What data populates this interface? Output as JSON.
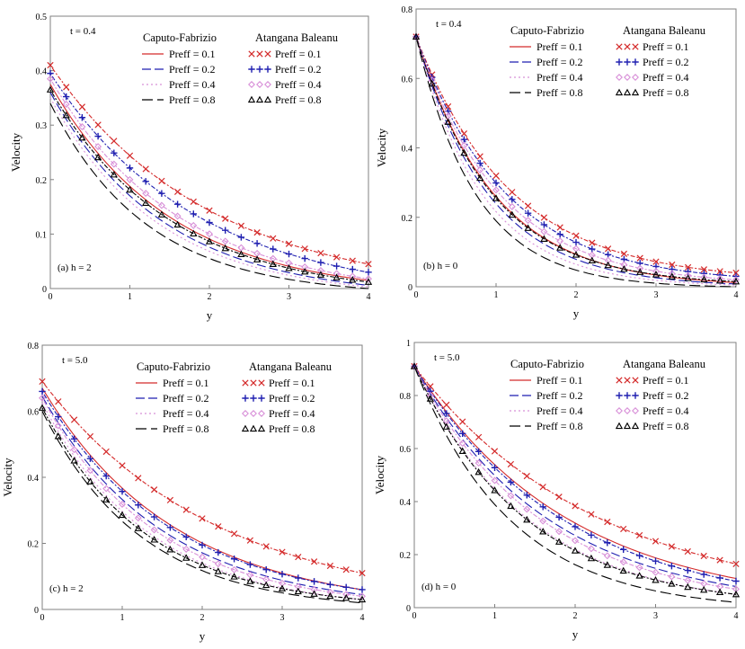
{
  "colors": {
    "red": "#d42a2a",
    "blue": "#1f1fb0",
    "pink": "#d890d8",
    "black": "#000000",
    "frame": "#808080"
  },
  "chart_data": [
    {
      "type": "line",
      "panel_label": "(a)  h = 2",
      "time_label": "t = 0.4",
      "xlabel": "y",
      "ylabel": "Velocity",
      "xlim": [
        0,
        4
      ],
      "ylim": [
        0,
        0.5
      ],
      "x_ticks": [
        "0",
        "1",
        "2",
        "3",
        "4"
      ],
      "y_ticks": [
        "0",
        "0.1",
        "0.2",
        "0.3",
        "0.4",
        "0.5"
      ],
      "legend_headers": [
        "Caputo-Fabrizio",
        "Atangana Baleanu"
      ],
      "series": [
        {
          "name": "Preff = 0.1",
          "model": "Caputo-Fabrizio",
          "u0": 0.375,
          "decay": 0.66,
          "end": 0.015
        },
        {
          "name": "Preff = 0.2",
          "model": "Caputo-Fabrizio",
          "u0": 0.36,
          "decay": 0.7,
          "end": 0.006
        },
        {
          "name": "Preff = 0.4",
          "model": "Caputo-Fabrizio",
          "u0": 0.35,
          "decay": 0.73,
          "end": 0.003
        },
        {
          "name": "Preff = 0.8",
          "model": "Caputo-Fabrizio",
          "u0": 0.34,
          "decay": 0.82,
          "end": 0.0
        },
        {
          "name": "Preff = 0.1",
          "model": "Atangana Baleanu",
          "u0": 0.41,
          "decay": 0.5,
          "end": 0.045
        },
        {
          "name": "Preff = 0.2",
          "model": "Atangana Baleanu",
          "u0": 0.395,
          "decay": 0.55,
          "end": 0.03
        },
        {
          "name": "Preff = 0.4",
          "model": "Atangana Baleanu",
          "u0": 0.385,
          "decay": 0.62,
          "end": 0.018
        },
        {
          "name": "Preff = 0.8",
          "model": "Atangana Baleanu",
          "u0": 0.365,
          "decay": 0.66,
          "end": 0.012
        }
      ]
    },
    {
      "type": "line",
      "panel_label": "(b)  h = 0",
      "time_label": "t = 0.4",
      "xlabel": "y",
      "ylabel": "Velocity",
      "xlim": [
        0,
        4
      ],
      "ylim": [
        0,
        0.8
      ],
      "x_ticks": [
        "0",
        "1",
        "2",
        "3",
        "4"
      ],
      "y_ticks": [
        "0",
        "0.2",
        "0.4",
        "0.6",
        "0.8"
      ],
      "legend_headers": [
        "Caputo-Fabrizio",
        "Atangana Baleanu"
      ],
      "series": [
        {
          "name": "Preff = 0.1",
          "model": "Caputo-Fabrizio",
          "u0": 0.72,
          "decay": 1.02,
          "end": 0.012
        },
        {
          "name": "Preff = 0.2",
          "model": "Caputo-Fabrizio",
          "u0": 0.72,
          "decay": 1.1,
          "end": 0.008
        },
        {
          "name": "Preff = 0.4",
          "model": "Caputo-Fabrizio",
          "u0": 0.72,
          "decay": 1.2,
          "end": 0.005
        },
        {
          "name": "Preff = 0.8",
          "model": "Caputo-Fabrizio",
          "u0": 0.72,
          "decay": 1.32,
          "end": 0.0
        },
        {
          "name": "Preff = 0.1",
          "model": "Atangana Baleanu",
          "u0": 0.72,
          "decay": 0.84,
          "end": 0.04
        },
        {
          "name": "Preff = 0.2",
          "model": "Atangana Baleanu",
          "u0": 0.72,
          "decay": 0.9,
          "end": 0.03
        },
        {
          "name": "Preff = 0.4",
          "model": "Atangana Baleanu",
          "u0": 0.72,
          "decay": 0.96,
          "end": 0.02
        },
        {
          "name": "Preff = 0.8",
          "model": "Atangana Baleanu",
          "u0": 0.72,
          "decay": 1.05,
          "end": 0.015
        }
      ]
    },
    {
      "type": "line",
      "panel_label": "(c)  h = 2",
      "time_label": "t = 5.0",
      "xlabel": "y",
      "ylabel": "Velocity",
      "xlim": [
        0,
        4
      ],
      "ylim": [
        0,
        0.8
      ],
      "x_ticks": [
        "0",
        "1",
        "2",
        "3",
        "4"
      ],
      "y_ticks": [
        "0",
        "0.2",
        "0.4",
        "0.6",
        "0.8"
      ],
      "legend_headers": [
        "Caputo-Fabrizio",
        "Atangana Baleanu"
      ],
      "series": [
        {
          "name": "Preff = 0.1",
          "model": "Caputo-Fabrizio",
          "u0": 0.67,
          "decay": 0.6,
          "end": 0.06
        },
        {
          "name": "Preff = 0.2",
          "model": "Caputo-Fabrizio",
          "u0": 0.645,
          "decay": 0.66,
          "end": 0.045
        },
        {
          "name": "Preff = 0.4",
          "model": "Caputo-Fabrizio",
          "u0": 0.625,
          "decay": 0.74,
          "end": 0.03
        },
        {
          "name": "Preff = 0.8",
          "model": "Caputo-Fabrizio",
          "u0": 0.6,
          "decay": 0.8,
          "end": 0.02
        },
        {
          "name": "Preff = 0.1",
          "model": "Atangana Baleanu",
          "u0": 0.69,
          "decay": 0.46,
          "end": 0.11
        },
        {
          "name": "Preff = 0.2",
          "model": "Atangana Baleanu",
          "u0": 0.66,
          "decay": 0.62,
          "end": 0.06
        },
        {
          "name": "Preff = 0.4",
          "model": "Atangana Baleanu",
          "u0": 0.64,
          "decay": 0.7,
          "end": 0.04
        },
        {
          "name": "Preff = 0.8",
          "model": "Atangana Baleanu",
          "u0": 0.61,
          "decay": 0.76,
          "end": 0.03
        }
      ]
    },
    {
      "type": "line",
      "panel_label": "(d)  h = 0",
      "time_label": "t = 5.0",
      "xlabel": "y",
      "ylabel": "Velocity",
      "xlim": [
        0,
        4
      ],
      "ylim": [
        0,
        1
      ],
      "x_ticks": [
        "0",
        "1",
        "2",
        "3",
        "4"
      ],
      "y_ticks": [
        "0",
        "0.2",
        "0.4",
        "0.6",
        "0.8",
        "1"
      ],
      "legend_headers": [
        "Caputo-Fabrizio",
        "Atangana Baleanu"
      ],
      "series": [
        {
          "name": "Preff = 0.1",
          "model": "Caputo-Fabrizio",
          "u0": 0.91,
          "decay": 0.52,
          "end": 0.11
        },
        {
          "name": "Preff = 0.2",
          "model": "Caputo-Fabrizio",
          "u0": 0.91,
          "decay": 0.6,
          "end": 0.08
        },
        {
          "name": "Preff = 0.4",
          "model": "Caputo-Fabrizio",
          "u0": 0.91,
          "decay": 0.7,
          "end": 0.05
        },
        {
          "name": "Preff = 0.8",
          "model": "Caputo-Fabrizio",
          "u0": 0.91,
          "decay": 0.83,
          "end": 0.02
        },
        {
          "name": "Preff = 0.1",
          "model": "Atangana Baleanu",
          "u0": 0.91,
          "decay": 0.44,
          "end": 0.165
        },
        {
          "name": "Preff = 0.2",
          "model": "Atangana Baleanu",
          "u0": 0.91,
          "decay": 0.54,
          "end": 0.1
        },
        {
          "name": "Preff = 0.4",
          "model": "Atangana Baleanu",
          "u0": 0.91,
          "decay": 0.64,
          "end": 0.07
        },
        {
          "name": "Preff = 0.8",
          "model": "Atangana Baleanu",
          "u0": 0.91,
          "decay": 0.72,
          "end": 0.05
        }
      ]
    }
  ]
}
